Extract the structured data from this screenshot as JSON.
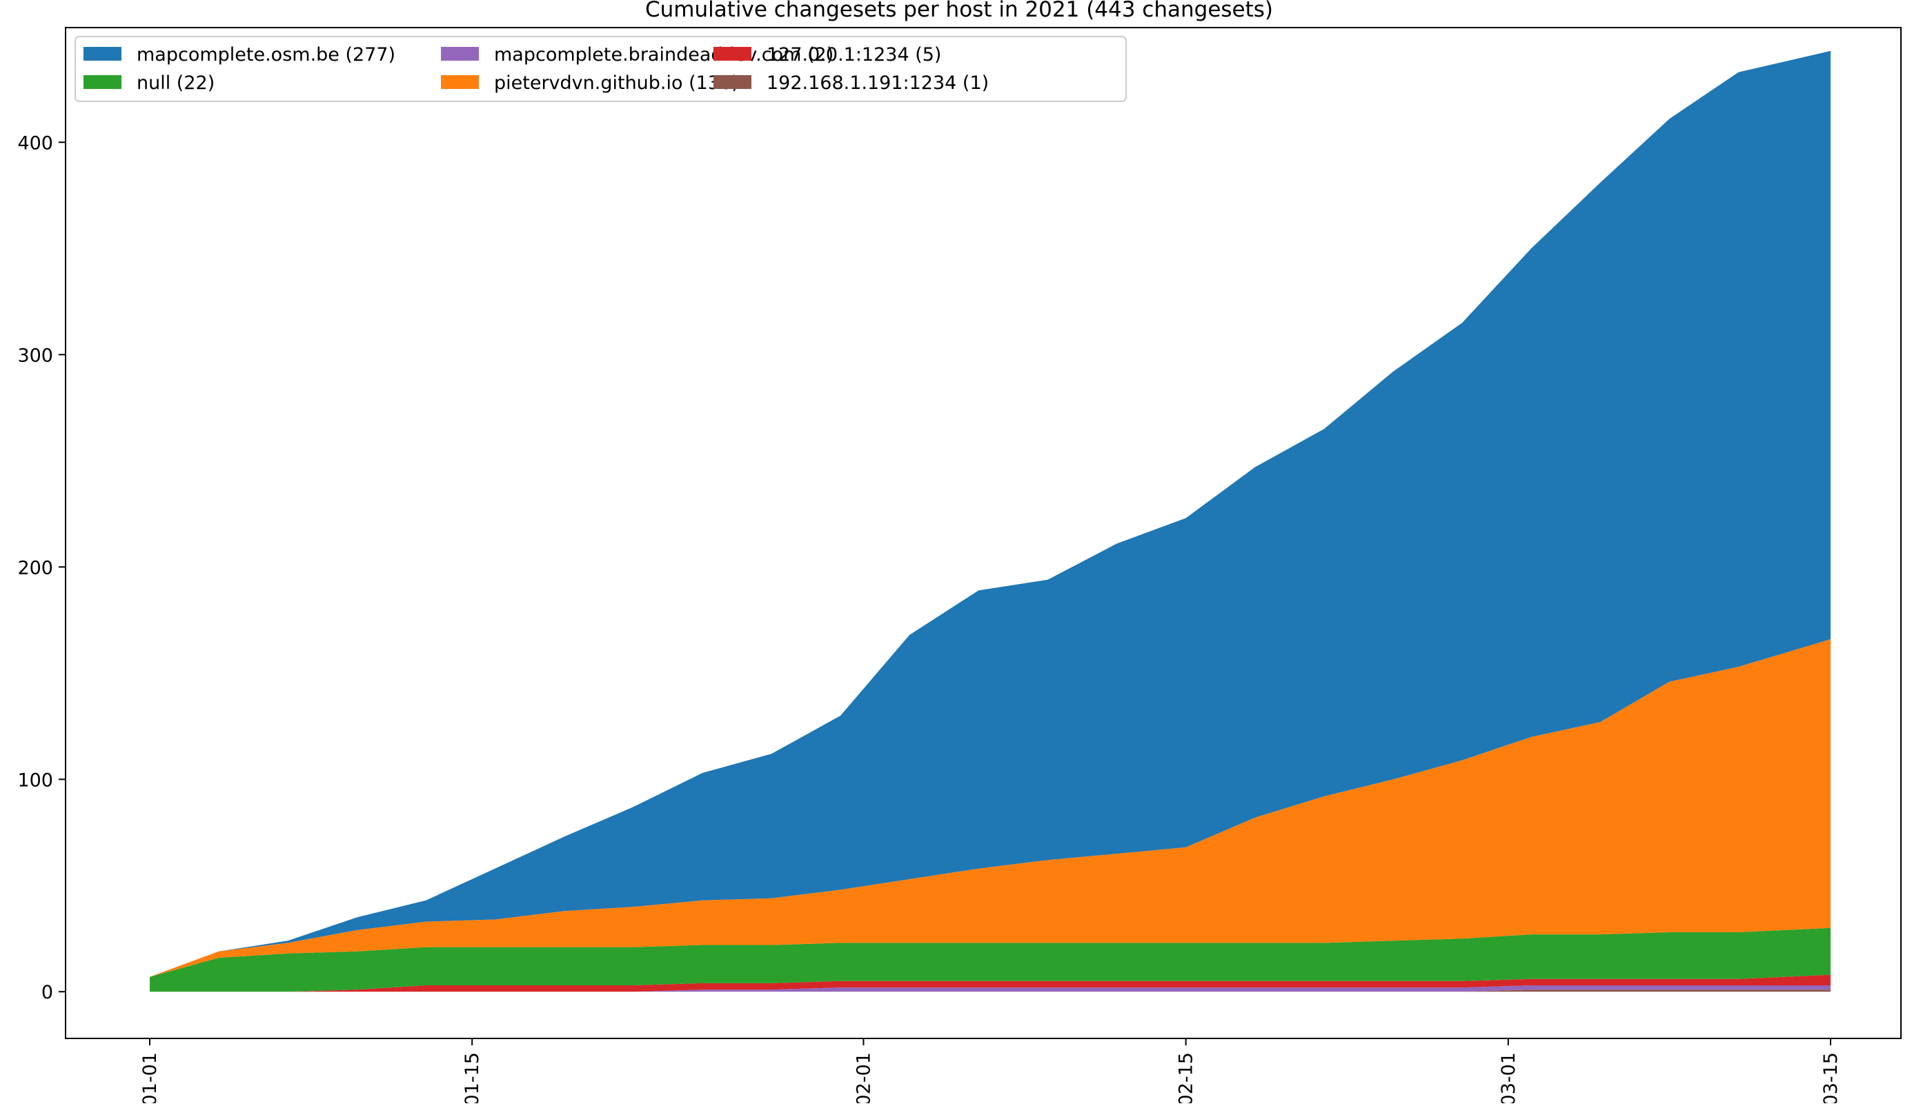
{
  "chart_data": {
    "type": "area",
    "stacked": true,
    "title": "Cumulative changesets per host in 2021 (443 changesets)",
    "xlabel": "",
    "ylabel": "",
    "x_start": "2021-01-01",
    "x_end": "2021-03-15",
    "ylim": [
      -22,
      454
    ],
    "y_ticks": [
      0,
      100,
      200,
      300,
      400
    ],
    "y_tick_labels": [
      "0",
      "100",
      "200",
      "300",
      "400"
    ],
    "x_ticks": [
      "2021-01-01",
      "2021-01-15",
      "2021-02-01",
      "2021-02-15",
      "2021-03-01",
      "2021-03-15"
    ],
    "x_tick_labels": [
      "01-01",
      "01-15",
      "02-01",
      "02-15",
      "03-01",
      "03-15"
    ],
    "grid": false,
    "legend_position": "top-left",
    "legend_columns": 3,
    "x": [
      "2021-01-01",
      "2021-01-04",
      "2021-01-07",
      "2021-01-10",
      "2021-01-13",
      "2021-01-16",
      "2021-01-19",
      "2021-01-22",
      "2021-01-25",
      "2021-01-28",
      "2021-01-31",
      "2021-02-03",
      "2021-02-06",
      "2021-02-09",
      "2021-02-12",
      "2021-02-15",
      "2021-02-18",
      "2021-02-21",
      "2021-02-24",
      "2021-02-27",
      "2021-03-02",
      "2021-03-05",
      "2021-03-08",
      "2021-03-11",
      "2021-03-15"
    ],
    "series": [
      {
        "name": "192.168.1.191:1234 (1)",
        "color": "#8c564b",
        "values": [
          0,
          0,
          0,
          0,
          0,
          0,
          0,
          0,
          0,
          0,
          0,
          0,
          0,
          0,
          0,
          0,
          0,
          0,
          0,
          0,
          1,
          1,
          1,
          1,
          1
        ]
      },
      {
        "name": "mapcomplete.braindeaddev.com (2)",
        "color": "#9467bd",
        "values": [
          0,
          0,
          0,
          0,
          0,
          0,
          0,
          0,
          1,
          1,
          2,
          2,
          2,
          2,
          2,
          2,
          2,
          2,
          2,
          2,
          2,
          2,
          2,
          2,
          2
        ]
      },
      {
        "name": "127.0.0.1:1234 (5)",
        "color": "#d62728",
        "values": [
          0,
          0,
          0,
          1,
          3,
          3,
          3,
          3,
          3,
          3,
          3,
          3,
          3,
          3,
          3,
          3,
          3,
          3,
          3,
          3,
          3,
          3,
          3,
          3,
          5
        ]
      },
      {
        "name": "null (22)",
        "color": "#2ca02c",
        "values": [
          7,
          16,
          18,
          18,
          18,
          18,
          18,
          18,
          18,
          18,
          18,
          18,
          18,
          18,
          18,
          18,
          18,
          18,
          19,
          20,
          21,
          21,
          22,
          22,
          22
        ]
      },
      {
        "name": "pietervdvn.github.io (136)",
        "color": "#ff7f0e",
        "values": [
          0,
          3,
          5,
          10,
          12,
          13,
          17,
          19,
          21,
          22,
          25,
          30,
          35,
          39,
          42,
          45,
          59,
          69,
          76,
          84,
          93,
          100,
          118,
          125,
          136
        ]
      },
      {
        "name": "mapcomplete.osm.be (277)",
        "color": "#1f77b4",
        "values": [
          0,
          0,
          1,
          6,
          10,
          24,
          35,
          47,
          60,
          68,
          82,
          115,
          131,
          132,
          146,
          155,
          165,
          173,
          192,
          206,
          230,
          254,
          265,
          280,
          277
        ]
      }
    ],
    "legend": [
      {
        "label": "mapcomplete.osm.be (277)",
        "color": "#1f77b4"
      },
      {
        "label": "null (22)",
        "color": "#2ca02c"
      },
      {
        "label": "mapcomplete.braindeaddev.com (2)",
        "color": "#9467bd"
      },
      {
        "label": "pietervdvn.github.io (136)",
        "color": "#ff7f0e"
      },
      {
        "label": "127.0.0.1:1234 (5)",
        "color": "#d62728"
      },
      {
        "label": "192.168.1.191:1234 (1)",
        "color": "#8c564b"
      }
    ]
  }
}
